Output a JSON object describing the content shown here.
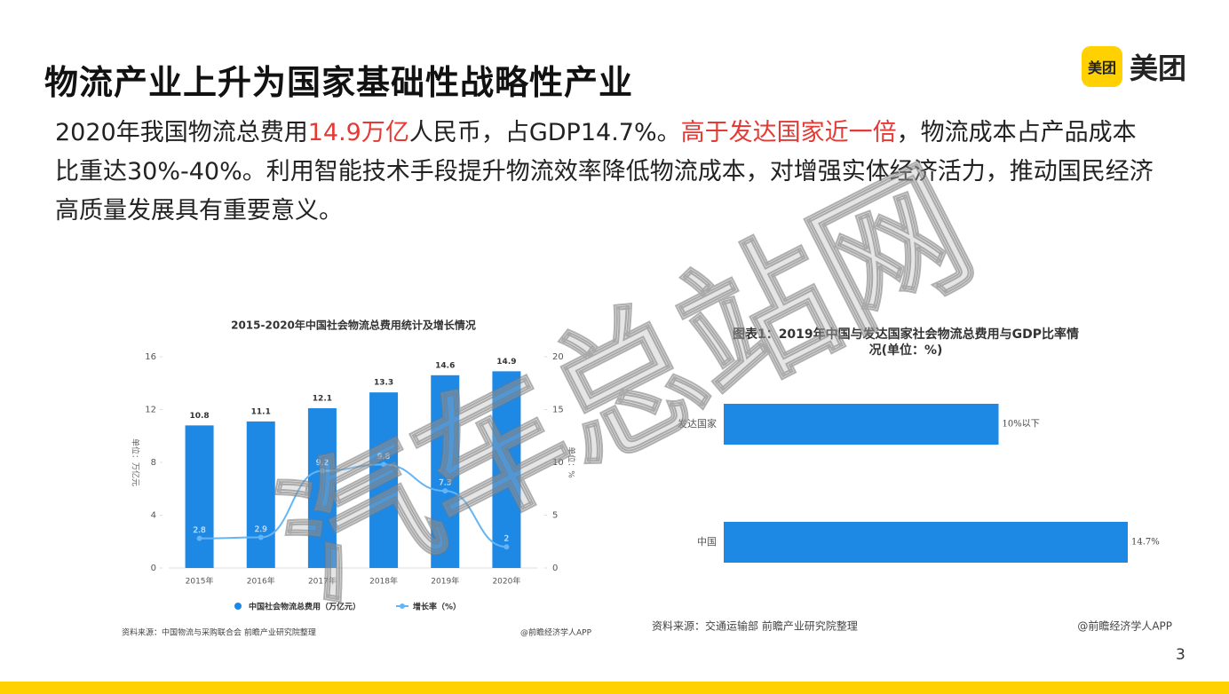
{
  "header": {
    "title": "物流产业上升为国家基础性战略性产业",
    "logo_icon": "美团",
    "logo_text": "美团"
  },
  "body": {
    "segments": [
      {
        "text": "2020年我国物流总费用",
        "highlight": false
      },
      {
        "text": "14.9万亿",
        "highlight": true
      },
      {
        "text": "人民币，占GDP14.7%。",
        "highlight": false
      },
      {
        "text": "高于发达国家近一倍",
        "highlight": true
      },
      {
        "text": "，物流成本占产品成本比重达30%-40%。利用智能技术手段提升物流效率降低物流成本，对增强实体经济活力，推动国民经济高质量发展具有重要意义。",
        "highlight": false
      }
    ]
  },
  "watermark": "汽车总站网",
  "page_number": "3",
  "chart_data": [
    {
      "type": "combo",
      "title": "2015-2020年中国社会物流总费用统计及增长情况",
      "categories": [
        "2015年",
        "2016年",
        "2017年",
        "2018年",
        "2019年",
        "2020年"
      ],
      "series": [
        {
          "name": "中国社会物流总费用（万亿元）",
          "type": "bar",
          "color": "#1e88e5",
          "values": [
            10.8,
            11.1,
            12.1,
            13.3,
            14.6,
            14.9
          ]
        },
        {
          "name": "增长率（%）",
          "type": "line",
          "axis": "y2",
          "color": "#64b5f6",
          "values": [
            2.8,
            2.9,
            9.2,
            9.8,
            7.3,
            2
          ]
        }
      ],
      "ylabel": "单位：万亿元",
      "y2label": "单位：%",
      "ylim": [
        0,
        16
      ],
      "yticks": [
        0,
        4,
        8,
        12,
        16
      ],
      "y2lim": [
        0,
        20
      ],
      "y2ticks": [
        0,
        5,
        10,
        15,
        20
      ],
      "source": "资料来源：中国物流与采购联合会 前瞻产业研究院整理",
      "credit": "@前瞻经济学人APP"
    },
    {
      "type": "barh",
      "title": "图表1：2019年中国与发达国家社会物流总费用与GDP比率情况(单位：%)",
      "categories": [
        "发达国家",
        "中国"
      ],
      "values": [
        10,
        14.7
      ],
      "value_labels": [
        "10%以下",
        "14.7%"
      ],
      "color": "#1e88e5",
      "source": "资料来源：交通运输部 前瞻产业研究院整理",
      "credit": "@前瞻经济学人APP"
    }
  ]
}
